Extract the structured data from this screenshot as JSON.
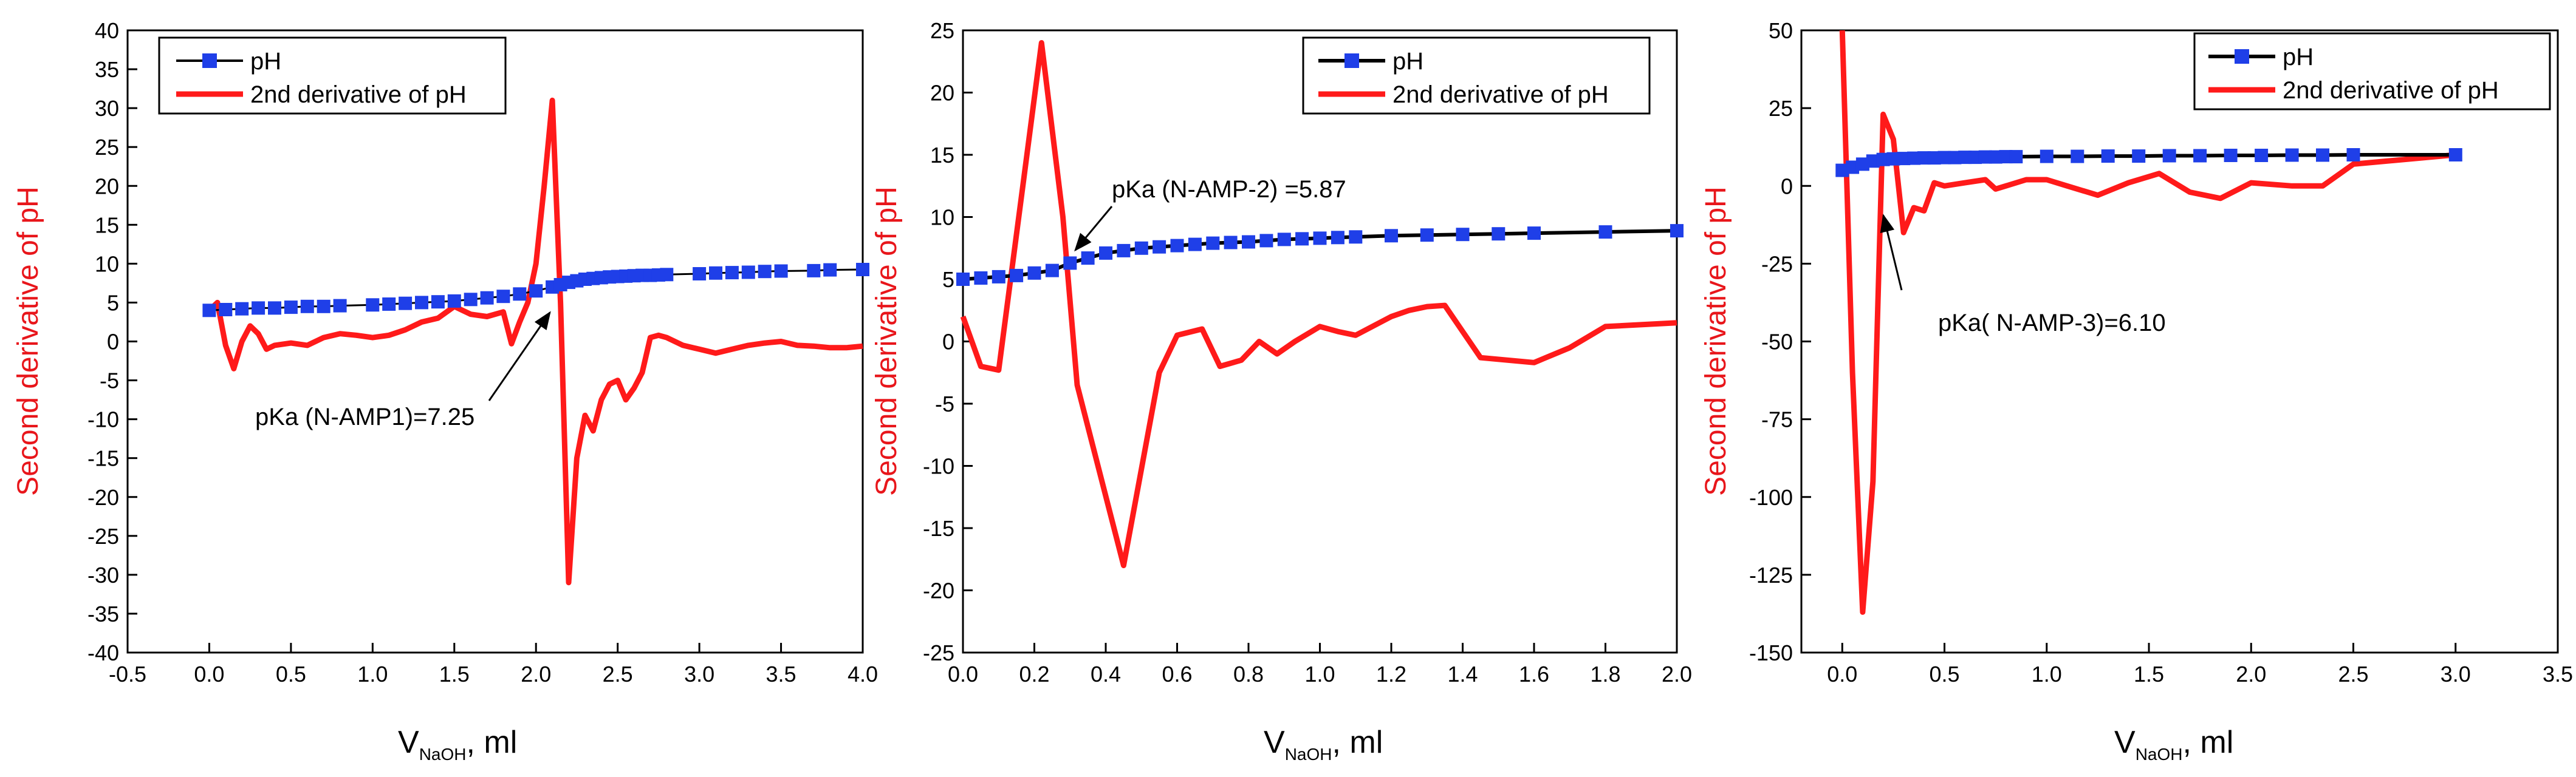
{
  "colors": {
    "ph_line": "#000000",
    "ph_marker": "#1f3fe8",
    "deriv": "#ff1a1a",
    "ylabel": "#e8161b"
  },
  "chart_data": [
    {
      "type": "line",
      "ylabel": "Second derivative of pH",
      "xlabel": {
        "main": "V",
        "sub": "NaOH",
        "tail": ", ml"
      },
      "xlim": [
        -0.5,
        4.0
      ],
      "ylim": [
        -40,
        40
      ],
      "xticks": [
        "-0.5",
        "0.0",
        "0.5",
        "1.0",
        "1.5",
        "2.0",
        "2.5",
        "3.0",
        "3.5",
        "4.0"
      ],
      "yticks": [
        "-40",
        "-35",
        "-30",
        "-25",
        "-20",
        "-15",
        "-10",
        "-5",
        "0",
        "5",
        "10",
        "15",
        "20",
        "25",
        "30",
        "35",
        "40"
      ],
      "legend": [
        "pH",
        "2nd derivative of pH"
      ],
      "annotation": "pKa (N-AMP1)=7.25",
      "series": [
        {
          "name": "pH",
          "x": [
            0,
            0.1,
            0.2,
            0.3,
            0.4,
            0.5,
            0.6,
            0.7,
            0.8,
            1.0,
            1.1,
            1.2,
            1.3,
            1.4,
            1.5,
            1.6,
            1.7,
            1.8,
            1.9,
            2.0,
            2.1,
            2.15,
            2.2,
            2.25,
            2.3,
            2.35,
            2.4,
            2.45,
            2.5,
            2.55,
            2.6,
            2.65,
            2.7,
            2.75,
            2.8,
            3.0,
            3.1,
            3.2,
            3.3,
            3.4,
            3.5,
            3.7,
            3.8,
            4.0
          ],
          "y": [
            4.0,
            4.1,
            4.2,
            4.3,
            4.3,
            4.4,
            4.5,
            4.5,
            4.6,
            4.7,
            4.8,
            4.9,
            5.0,
            5.1,
            5.2,
            5.4,
            5.6,
            5.8,
            6.1,
            6.5,
            7.0,
            7.3,
            7.6,
            7.8,
            8.0,
            8.1,
            8.2,
            8.3,
            8.35,
            8.4,
            8.45,
            8.5,
            8.5,
            8.55,
            8.6,
            8.7,
            8.8,
            8.85,
            8.9,
            9.0,
            9.05,
            9.1,
            9.2,
            9.25
          ]
        },
        {
          "name": "2nd derivative of pH",
          "x": [
            0,
            0.05,
            0.1,
            0.15,
            0.2,
            0.25,
            0.3,
            0.35,
            0.4,
            0.5,
            0.6,
            0.7,
            0.8,
            0.9,
            1.0,
            1.1,
            1.2,
            1.3,
            1.4,
            1.5,
            1.6,
            1.7,
            1.8,
            1.85,
            1.9,
            1.95,
            2.0,
            2.05,
            2.1,
            2.15,
            2.2,
            2.25,
            2.3,
            2.35,
            2.4,
            2.45,
            2.5,
            2.55,
            2.6,
            2.65,
            2.7,
            2.75,
            2.8,
            2.9,
            3.0,
            3.1,
            3.2,
            3.3,
            3.4,
            3.5,
            3.6,
            3.7,
            3.8,
            3.9,
            4.0
          ],
          "y": [
            4.0,
            5.0,
            -0.5,
            -3.5,
            0,
            2.0,
            1.0,
            -1.0,
            -0.5,
            -0.2,
            -0.5,
            0.5,
            1.0,
            0.8,
            0.5,
            0.8,
            1.5,
            2.5,
            3.0,
            4.5,
            3.5,
            3.2,
            3.8,
            -0.3,
            2.5,
            5.0,
            10.0,
            20.0,
            31.0,
            5.0,
            -31.0,
            -15.0,
            -9.5,
            -11.5,
            -7.5,
            -5.5,
            -5.0,
            -7.5,
            -6.0,
            -4.0,
            0.5,
            0.8,
            0.5,
            -0.5,
            -1.0,
            -1.5,
            -1.0,
            -0.5,
            -0.2,
            0,
            -0.5,
            -0.6,
            -0.8,
            -0.8,
            -0.6
          ]
        }
      ]
    },
    {
      "type": "line",
      "ylabel": "Second derivative of pH",
      "xlabel": {
        "main": "V",
        "sub": "NaOH",
        "tail": ", ml"
      },
      "xlim": [
        0.0,
        2.0
      ],
      "ylim": [
        -25,
        25
      ],
      "xticks": [
        "0.0",
        "0.2",
        "0.4",
        "0.6",
        "0.8",
        "1.0",
        "1.2",
        "1.4",
        "1.6",
        "1.8",
        "2.0"
      ],
      "yticks": [
        "-25",
        "-20",
        "-15",
        "-10",
        "-5",
        "0",
        "5",
        "10",
        "15",
        "20",
        "25"
      ],
      "legend": [
        "pH",
        "2nd derivative of pH"
      ],
      "annotation": "pKa (N-AMP-2) =5.87",
      "series": [
        {
          "name": "pH",
          "x": [
            0,
            0.05,
            0.1,
            0.15,
            0.2,
            0.25,
            0.3,
            0.35,
            0.4,
            0.45,
            0.5,
            0.55,
            0.6,
            0.65,
            0.7,
            0.75,
            0.8,
            0.85,
            0.9,
            0.95,
            1.0,
            1.05,
            1.1,
            1.2,
            1.3,
            1.4,
            1.5,
            1.6,
            1.8,
            2.0
          ],
          "y": [
            5.0,
            5.1,
            5.2,
            5.3,
            5.5,
            5.7,
            6.3,
            6.7,
            7.1,
            7.3,
            7.5,
            7.6,
            7.7,
            7.8,
            7.9,
            7.95,
            8.0,
            8.1,
            8.2,
            8.25,
            8.3,
            8.35,
            8.4,
            8.5,
            8.55,
            8.6,
            8.65,
            8.7,
            8.8,
            8.9
          ]
        },
        {
          "name": "2nd derivative of pH",
          "x": [
            0,
            0.05,
            0.1,
            0.17,
            0.22,
            0.28,
            0.32,
            0.45,
            0.55,
            0.6,
            0.67,
            0.72,
            0.78,
            0.83,
            0.88,
            0.93,
            1.0,
            1.05,
            1.1,
            1.2,
            1.25,
            1.3,
            1.35,
            1.45,
            1.6,
            1.7,
            1.8,
            2.0
          ],
          "y": [
            2.0,
            -2.0,
            -2.3,
            13.0,
            24.0,
            10.0,
            -3.5,
            -18.0,
            -2.5,
            0.5,
            1.0,
            -2.0,
            -1.5,
            0,
            -1.0,
            0,
            1.2,
            0.8,
            0.5,
            2.0,
            2.5,
            2.8,
            2.9,
            -1.3,
            -1.7,
            -0.5,
            1.2,
            1.5
          ]
        }
      ]
    },
    {
      "type": "line",
      "ylabel": "Second derivative of pH",
      "xlabel": {
        "main": "V",
        "sub": "NaOH",
        "tail": ", ml"
      },
      "xlim": [
        -0.2,
        3.5
      ],
      "ylim": [
        -150,
        50
      ],
      "xticks": [
        "0.0",
        "0.5",
        "1.0",
        "1.5",
        "2.0",
        "2.5",
        "3.0",
        "3.5"
      ],
      "yticks": [
        "-150",
        "-125",
        "-100",
        "-75",
        "-50",
        "-25",
        "0",
        "25",
        "50"
      ],
      "legend": [
        "pH",
        "2nd derivative of pH"
      ],
      "annotation": "pKa( N-AMP-3)=6.10",
      "series": [
        {
          "name": "pH",
          "x": [
            0,
            0.05,
            0.1,
            0.15,
            0.2,
            0.25,
            0.3,
            0.35,
            0.4,
            0.45,
            0.5,
            0.55,
            0.6,
            0.65,
            0.7,
            0.75,
            0.8,
            0.85,
            1.0,
            1.15,
            1.3,
            1.45,
            1.6,
            1.75,
            1.9,
            2.05,
            2.2,
            2.35,
            2.5,
            3.0
          ],
          "y": [
            5,
            6,
            7,
            8,
            8.5,
            8.7,
            8.8,
            8.9,
            9.0,
            9.0,
            9.1,
            9.1,
            9.2,
            9.2,
            9.3,
            9.3,
            9.4,
            9.4,
            9.5,
            9.5,
            9.6,
            9.6,
            9.7,
            9.7,
            9.8,
            9.8,
            9.9,
            9.9,
            10,
            10
          ]
        },
        {
          "name": "2nd derivative of pH",
          "x": [
            0,
            0.05,
            0.1,
            0.15,
            0.2,
            0.25,
            0.3,
            0.35,
            0.4,
            0.45,
            0.5,
            0.6,
            0.7,
            0.75,
            0.8,
            0.9,
            1.0,
            1.1,
            1.25,
            1.4,
            1.55,
            1.7,
            1.85,
            2.0,
            2.2,
            2.35,
            2.5,
            3.0
          ],
          "y": [
            50,
            -60,
            -137,
            -95,
            23,
            15,
            -15,
            -7,
            -8,
            1,
            0,
            1,
            2,
            -1,
            0,
            2,
            2,
            0,
            -3,
            1,
            4,
            -2,
            -4,
            1,
            0,
            0,
            7,
            10
          ]
        }
      ]
    }
  ]
}
